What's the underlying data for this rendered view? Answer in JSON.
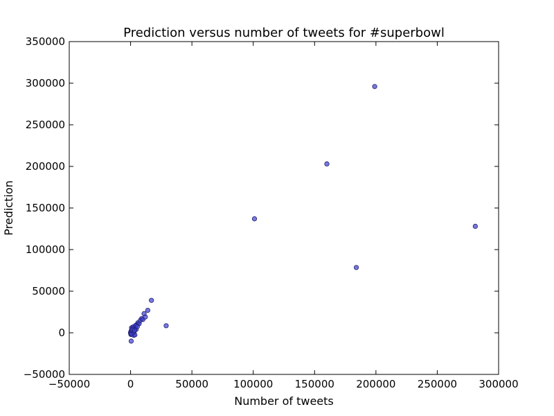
{
  "chart_data": {
    "type": "scatter",
    "title": "Prediction versus number of tweets for #superbowl",
    "xlabel": "Number of tweets",
    "ylabel": "Prediction",
    "xlim": [
      -50000,
      300000
    ],
    "ylim": [
      -50000,
      350000
    ],
    "xticks": [
      -50000,
      0,
      50000,
      100000,
      150000,
      200000,
      250000,
      300000
    ],
    "yticks": [
      -50000,
      0,
      50000,
      100000,
      150000,
      200000,
      250000,
      300000,
      350000
    ],
    "xtick_labels": [
      "−50000",
      "0",
      "50000",
      "100000",
      "150000",
      "200000",
      "250000",
      "300000"
    ],
    "ytick_labels": [
      "−50000",
      "0",
      "50000",
      "100000",
      "150000",
      "200000",
      "250000",
      "300000",
      "350000"
    ],
    "grid": false,
    "marker_color": "#3f3fcf",
    "marker_edge_color": "#1f1f6f",
    "series": [
      {
        "points": [
          [
            0,
            0
          ],
          [
            300,
            -2000
          ],
          [
            600,
            1500
          ],
          [
            900,
            2500
          ],
          [
            1200,
            -1000
          ],
          [
            1500,
            3500
          ],
          [
            1800,
            500
          ],
          [
            2200,
            4500
          ],
          [
            2600,
            2000
          ],
          [
            3000,
            6500
          ],
          [
            3500,
            5500
          ],
          [
            4000,
            8500
          ],
          [
            4500,
            4000
          ],
          [
            5200,
            10000
          ],
          [
            6000,
            12000
          ],
          [
            7000,
            11000
          ],
          [
            8000,
            15000
          ],
          [
            9000,
            17000
          ],
          [
            10000,
            16000
          ],
          [
            11000,
            23000
          ],
          [
            12000,
            19000
          ],
          [
            14000,
            27000
          ],
          [
            17000,
            39000
          ],
          [
            29000,
            8500
          ],
          [
            500,
            -10000
          ],
          [
            2500,
            -3000
          ],
          [
            3500,
            -2500
          ],
          [
            800,
            6000
          ],
          [
            1600,
            5000
          ],
          [
            2000,
            7000
          ],
          [
            4200,
            9000
          ],
          [
            200,
            1000
          ],
          [
            100,
            -500
          ],
          [
            400,
            2000
          ],
          [
            700,
            -1500
          ],
          [
            1000,
            3000
          ],
          [
            1300,
            4000
          ],
          [
            2800,
            1000
          ],
          [
            3200,
            3000
          ],
          [
            5500,
            7500
          ],
          [
            101000,
            137000
          ],
          [
            160000,
            203000
          ],
          [
            184000,
            78500
          ],
          [
            199000,
            296000
          ],
          [
            281000,
            128000
          ]
        ]
      }
    ]
  }
}
